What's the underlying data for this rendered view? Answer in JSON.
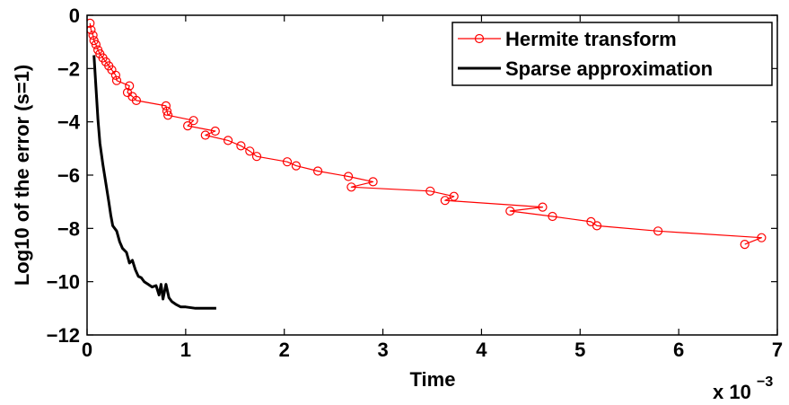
{
  "chart_data": {
    "type": "line",
    "title": "",
    "xlabel": "Time",
    "ylabel": "Log10 of the error (s=1)",
    "x_multiplier_label": "x 10",
    "x_multiplier_exponent": "−3",
    "xlim": [
      0,
      7
    ],
    "ylim": [
      -12,
      0
    ],
    "xticks": [
      "0",
      "1",
      "2",
      "3",
      "4",
      "5",
      "6",
      "7"
    ],
    "yticks": [
      "0",
      "−2",
      "−4",
      "−6",
      "−8",
      "−10",
      "−12"
    ],
    "grid": false,
    "legend_position": "top-right",
    "series": [
      {
        "name": "Hermite transform",
        "color": "#ff0000",
        "marker": "circle",
        "points": [
          [
            0.03,
            -0.3
          ],
          [
            0.04,
            -0.55
          ],
          [
            0.06,
            -0.75
          ],
          [
            0.07,
            -0.95
          ],
          [
            0.09,
            -1.1
          ],
          [
            0.11,
            -1.3
          ],
          [
            0.13,
            -1.45
          ],
          [
            0.16,
            -1.6
          ],
          [
            0.19,
            -1.75
          ],
          [
            0.22,
            -1.9
          ],
          [
            0.25,
            -2.05
          ],
          [
            0.29,
            -2.25
          ],
          [
            0.3,
            -2.45
          ],
          [
            0.43,
            -2.65
          ],
          [
            0.41,
            -2.9
          ],
          [
            0.46,
            -3.05
          ],
          [
            0.5,
            -3.2
          ],
          [
            0.8,
            -3.4
          ],
          [
            0.81,
            -3.6
          ],
          [
            0.82,
            -3.75
          ],
          [
            1.08,
            -3.95
          ],
          [
            1.02,
            -4.15
          ],
          [
            1.3,
            -4.35
          ],
          [
            1.2,
            -4.5
          ],
          [
            1.43,
            -4.7
          ],
          [
            1.56,
            -4.9
          ],
          [
            1.65,
            -5.1
          ],
          [
            1.72,
            -5.3
          ],
          [
            2.03,
            -5.5
          ],
          [
            2.12,
            -5.65
          ],
          [
            2.34,
            -5.85
          ],
          [
            2.65,
            -6.05
          ],
          [
            2.9,
            -6.25
          ],
          [
            2.68,
            -6.45
          ],
          [
            3.48,
            -6.6
          ],
          [
            3.72,
            -6.8
          ],
          [
            3.63,
            -6.95
          ],
          [
            4.62,
            -7.2
          ],
          [
            4.29,
            -7.35
          ],
          [
            4.72,
            -7.55
          ],
          [
            5.11,
            -7.75
          ],
          [
            5.17,
            -7.9
          ],
          [
            5.79,
            -8.1
          ],
          [
            6.84,
            -8.35
          ],
          [
            6.67,
            -8.6
          ]
        ]
      },
      {
        "name": "Sparse approximation",
        "color": "#000000",
        "marker": "none",
        "points": [
          [
            0.07,
            -1.5
          ],
          [
            0.09,
            -2.7
          ],
          [
            0.11,
            -3.9
          ],
          [
            0.13,
            -4.8
          ],
          [
            0.16,
            -5.6
          ],
          [
            0.19,
            -6.3
          ],
          [
            0.22,
            -7.0
          ],
          [
            0.24,
            -7.5
          ],
          [
            0.26,
            -7.9
          ],
          [
            0.3,
            -8.1
          ],
          [
            0.33,
            -8.5
          ],
          [
            0.36,
            -8.75
          ],
          [
            0.4,
            -8.9
          ],
          [
            0.43,
            -9.3
          ],
          [
            0.46,
            -9.2
          ],
          [
            0.49,
            -9.55
          ],
          [
            0.52,
            -9.8
          ],
          [
            0.55,
            -9.85
          ],
          [
            0.58,
            -10.0
          ],
          [
            0.62,
            -10.1
          ],
          [
            0.66,
            -10.2
          ],
          [
            0.7,
            -10.15
          ],
          [
            0.73,
            -10.5
          ],
          [
            0.75,
            -10.1
          ],
          [
            0.77,
            -10.65
          ],
          [
            0.8,
            -10.1
          ],
          [
            0.83,
            -10.6
          ],
          [
            0.86,
            -10.75
          ],
          [
            0.9,
            -10.85
          ],
          [
            0.95,
            -10.95
          ],
          [
            1.0,
            -10.95
          ],
          [
            1.1,
            -11.0
          ],
          [
            1.2,
            -11.0
          ],
          [
            1.31,
            -11.0
          ]
        ]
      }
    ]
  }
}
